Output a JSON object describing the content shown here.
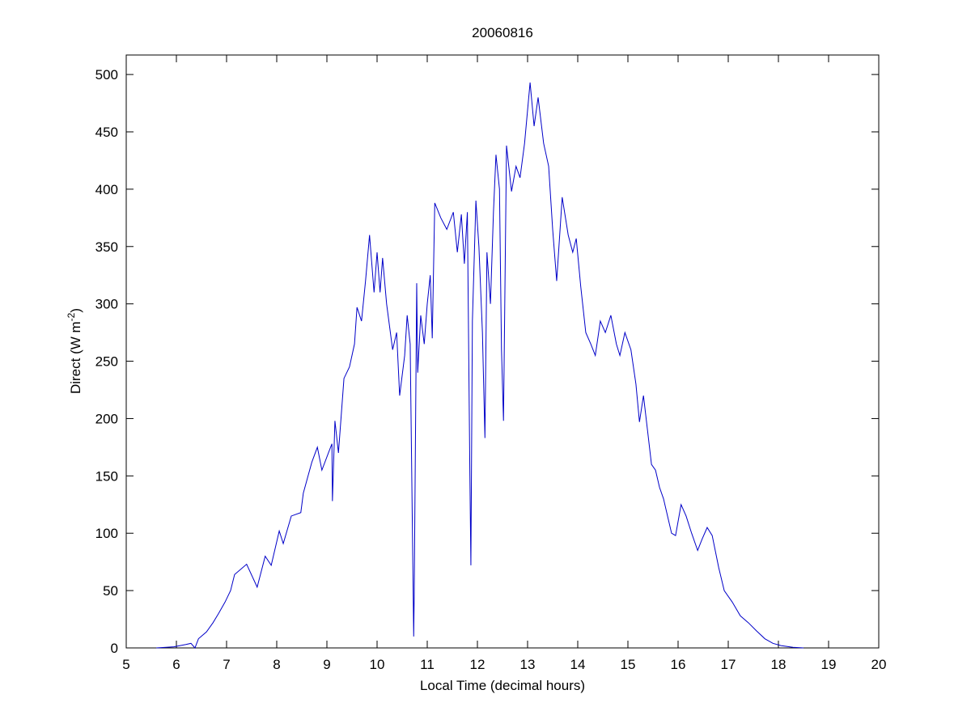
{
  "chart_data": {
    "type": "line",
    "title": "20060816",
    "x_label": "Local Time (decimal hours)",
    "y_label": [
      "Direct (W m",
      "-2",
      ")"
    ],
    "xlim": [
      5,
      20
    ],
    "ylim": [
      0,
      517
    ],
    "xticks": [
      5,
      6,
      7,
      8,
      9,
      10,
      11,
      12,
      13,
      14,
      15,
      16,
      17,
      18,
      19,
      20
    ],
    "yticks": [
      0,
      50,
      100,
      150,
      200,
      250,
      300,
      350,
      400,
      450,
      500
    ],
    "grid": false,
    "series": [
      {
        "name": "Direct",
        "color": "#0000c8",
        "x": [
          5.6,
          5.95,
          6.19,
          6.29,
          6.37,
          6.44,
          6.6,
          6.73,
          6.84,
          6.97,
          7.08,
          7.16,
          7.4,
          7.61,
          7.77,
          7.89,
          8.05,
          8.13,
          8.29,
          8.48,
          8.53,
          8.7,
          8.81,
          8.9,
          9.03,
          9.1,
          9.11,
          9.16,
          9.23,
          9.34,
          9.45,
          9.55,
          9.6,
          9.69,
          9.77,
          9.85,
          9.94,
          10.0,
          10.06,
          10.11,
          10.19,
          10.31,
          10.39,
          10.45,
          10.55,
          10.6,
          10.66,
          10.73,
          10.74,
          10.79,
          10.81,
          10.87,
          10.94,
          11.0,
          11.06,
          11.1,
          11.15,
          11.27,
          11.39,
          11.52,
          11.6,
          11.68,
          11.74,
          11.8,
          11.85,
          11.87,
          11.9,
          11.97,
          12.03,
          12.1,
          12.15,
          12.19,
          12.26,
          12.32,
          12.37,
          12.44,
          12.48,
          12.52,
          12.58,
          12.68,
          12.77,
          12.85,
          12.94,
          13.05,
          13.13,
          13.21,
          13.32,
          13.42,
          13.5,
          13.58,
          13.69,
          13.81,
          13.9,
          13.97,
          14.06,
          14.16,
          14.26,
          14.35,
          14.45,
          14.55,
          14.66,
          14.77,
          14.84,
          14.94,
          15.06,
          15.16,
          15.23,
          15.31,
          15.39,
          15.47,
          15.55,
          15.63,
          15.71,
          15.79,
          15.87,
          15.95,
          16.06,
          16.16,
          16.27,
          16.39,
          16.48,
          16.58,
          16.68,
          16.81,
          16.92,
          17.08,
          17.24,
          17.4,
          17.56,
          17.73,
          17.89,
          18.05,
          18.29,
          18.5
        ],
        "values": [
          0,
          1,
          3,
          4,
          0,
          8,
          14,
          22,
          30,
          40,
          50,
          64,
          73,
          53,
          80,
          72,
          102,
          91,
          115,
          118,
          135,
          162,
          175,
          155,
          170,
          178,
          128,
          198,
          170,
          235,
          245,
          265,
          297,
          285,
          320,
          360,
          310,
          345,
          310,
          340,
          300,
          260,
          275,
          220,
          255,
          290,
          265,
          10,
          45,
          318,
          240,
          290,
          265,
          300,
          325,
          270,
          388,
          375,
          365,
          380,
          345,
          378,
          335,
          380,
          150,
          72,
          285,
          390,
          350,
          275,
          183,
          345,
          300,
          380,
          430,
          400,
          260,
          198,
          438,
          398,
          420,
          410,
          440,
          493,
          455,
          480,
          440,
          420,
          365,
          320,
          393,
          360,
          345,
          357,
          315,
          275,
          265,
          255,
          285,
          275,
          290,
          265,
          255,
          275,
          260,
          230,
          197,
          220,
          190,
          160,
          155,
          140,
          130,
          115,
          100,
          98,
          125,
          115,
          100,
          85,
          95,
          105,
          98,
          70,
          50,
          40,
          28,
          22,
          15,
          8,
          4,
          2,
          0.5,
          0
        ]
      }
    ]
  }
}
